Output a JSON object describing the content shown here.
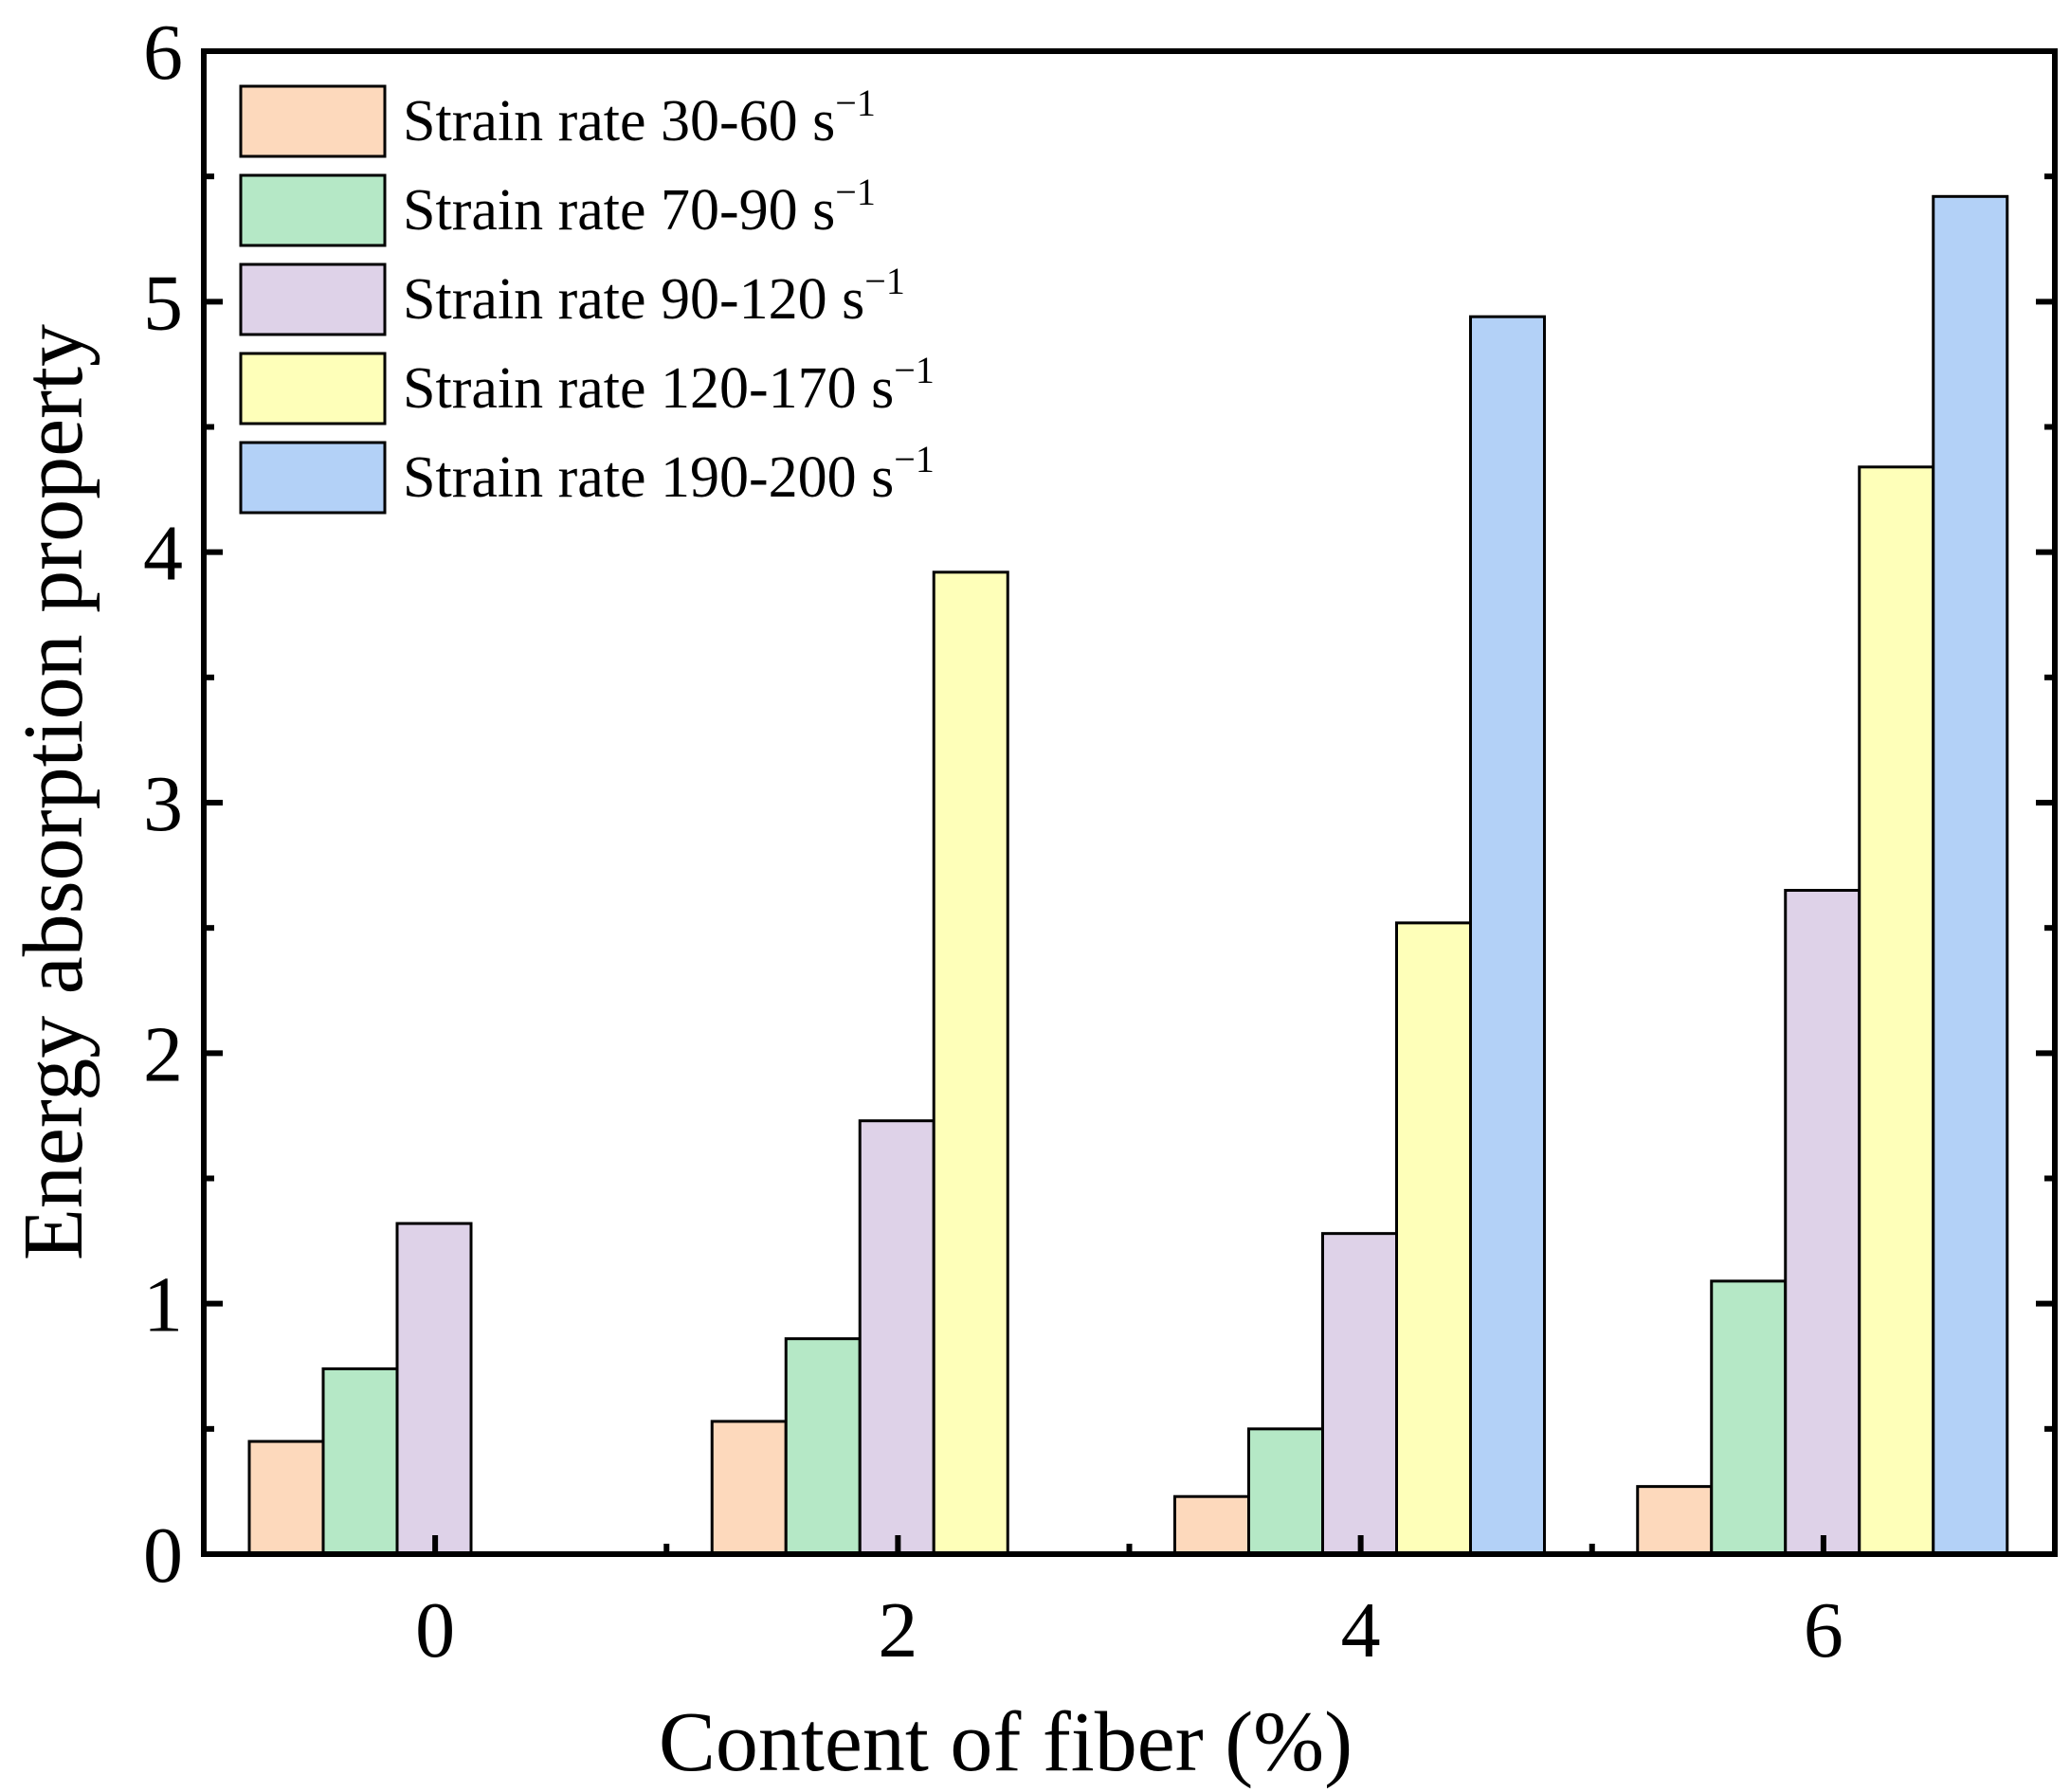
{
  "chart_data": {
    "type": "bar",
    "xlabel": "Content of fiber (%)",
    "ylabel": "Energy absorption property",
    "categories": [
      "0",
      "2",
      "4",
      "6"
    ],
    "ylim": [
      0,
      6
    ],
    "yticks": [
      "0",
      "1",
      "2",
      "3",
      "4",
      "5",
      "6"
    ],
    "legend_position": "top-left",
    "series": [
      {
        "name": "Strain rate 30-60 s",
        "sup": "−1",
        "color": "#FDD9BC",
        "values": [
          0.45,
          0.53,
          0.23,
          0.27
        ]
      },
      {
        "name": "Strain rate 70-90 s",
        "sup": "−1",
        "color": "#B5E8C6",
        "values": [
          0.74,
          0.86,
          0.5,
          1.09
        ]
      },
      {
        "name": "Strain rate 90-120 s",
        "sup": "−1",
        "color": "#DED2E8",
        "values": [
          1.32,
          1.73,
          1.28,
          2.65
        ]
      },
      {
        "name": "Strain rate 120-170 s",
        "sup": "−1",
        "color": "#FEFFB9",
        "values": [
          null,
          3.92,
          2.52,
          4.34
        ]
      },
      {
        "name": "Strain rate 190-200 s",
        "sup": "−1",
        "color": "#B3D1F7",
        "values": [
          null,
          null,
          4.94,
          5.42
        ]
      }
    ]
  }
}
